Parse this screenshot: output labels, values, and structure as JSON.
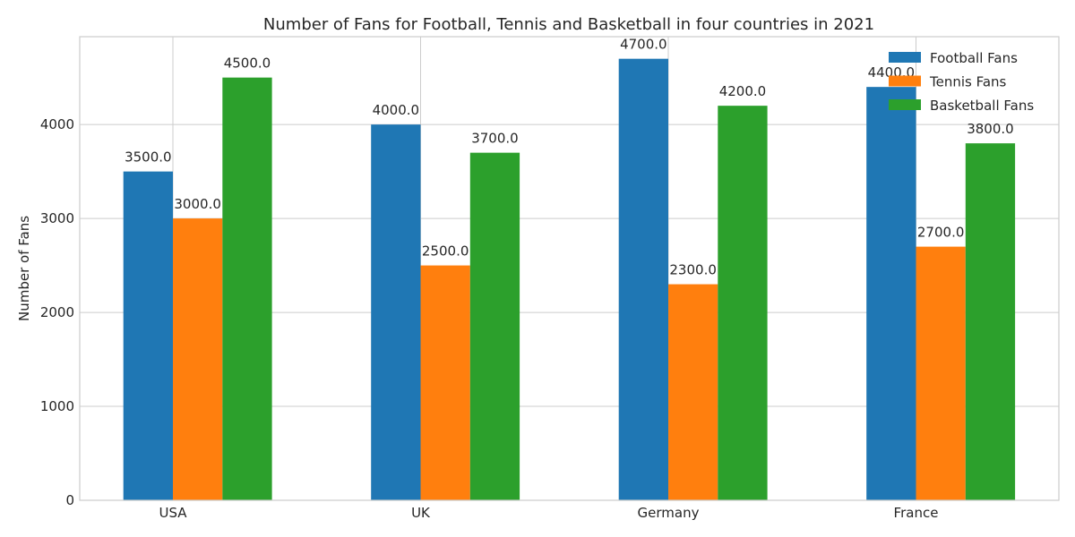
{
  "chart_data": {
    "type": "bar",
    "title": "Number of Fans for Football, Tennis and Basketball in four countries in 2021",
    "xlabel": "",
    "ylabel": "Number of Fans",
    "categories": [
      "USA",
      "UK",
      "Germany",
      "France"
    ],
    "series": [
      {
        "name": "Football Fans",
        "values": [
          3500,
          4000,
          4700,
          4400
        ],
        "labels": [
          "3500.0",
          "4000.0",
          "4700.0",
          "4400.0"
        ],
        "color": "#1f77b4"
      },
      {
        "name": "Tennis Fans",
        "values": [
          3000,
          2500,
          2300,
          2700
        ],
        "labels": [
          "3000.0",
          "2500.0",
          "2300.0",
          "2700.0"
        ],
        "color": "#ff7f0e"
      },
      {
        "name": "Basketball Fans",
        "values": [
          4500,
          3700,
          4200,
          3800
        ],
        "labels": [
          "4500.0",
          "3700.0",
          "4200.0",
          "3800.0"
        ],
        "color": "#2ca02c"
      }
    ],
    "yticks": [
      0,
      1000,
      2000,
      3000,
      4000
    ],
    "ytick_labels": [
      "0",
      "1000",
      "2000",
      "3000",
      "4000"
    ],
    "ylim": [
      0,
      4935
    ],
    "grid": true,
    "legend": "top-right"
  }
}
